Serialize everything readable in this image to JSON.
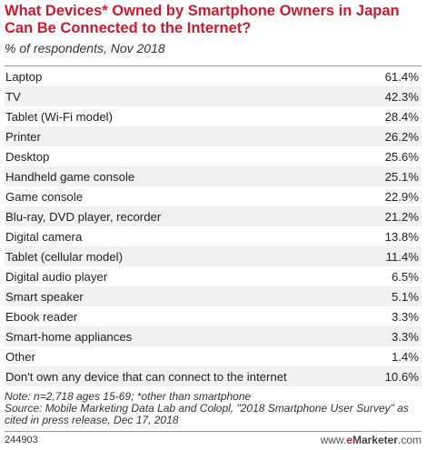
{
  "chart_data": {
    "type": "table",
    "title": "What Devices* Owned by Smartphone Owners in Japan Can Be Connected to the Internet?",
    "subtitle": "% of respondents, Nov 2018",
    "rows": [
      {
        "label": "Laptop",
        "value": 61.4,
        "display": "61.4%"
      },
      {
        "label": "TV",
        "value": 42.3,
        "display": "42.3%"
      },
      {
        "label": "Tablet (Wi-Fi model)",
        "value": 28.4,
        "display": "28.4%"
      },
      {
        "label": "Printer",
        "value": 26.2,
        "display": "26.2%"
      },
      {
        "label": "Desktop",
        "value": 25.6,
        "display": "25.6%"
      },
      {
        "label": "Handheld game console",
        "value": 25.1,
        "display": "25.1%"
      },
      {
        "label": "Game console",
        "value": 22.9,
        "display": "22.9%"
      },
      {
        "label": "Blu-ray, DVD player, recorder",
        "value": 21.2,
        "display": "21.2%"
      },
      {
        "label": "Digital camera",
        "value": 13.8,
        "display": "13.8%"
      },
      {
        "label": "Tablet (cellular model)",
        "value": 11.4,
        "display": "11.4%"
      },
      {
        "label": "Digital audio player",
        "value": 6.5,
        "display": "6.5%"
      },
      {
        "label": "Smart speaker",
        "value": 5.1,
        "display": "5.1%"
      },
      {
        "label": "Ebook reader",
        "value": 3.3,
        "display": "3.3%"
      },
      {
        "label": "Smart-home appliances",
        "value": 3.3,
        "display": "3.3%"
      },
      {
        "label": "Other",
        "value": 1.4,
        "display": "1.4%"
      },
      {
        "label": "Don't own any device that can connect to the internet",
        "value": 10.6,
        "display": "10.6%"
      }
    ]
  },
  "note": "Note: n=2,718 ages 15-69; *other than smartphone",
  "source": "Source: Mobile Marketing Data Lab and Colopl, \"2018 Smartphone User Survey\" as cited in press release, Dec 17, 2018",
  "chart_id": "244903",
  "brand": {
    "prefix": "www.",
    "e": "e",
    "name": "Marketer",
    "suffix": ".com"
  },
  "colors": {
    "title": "#d1192e",
    "row_shade": "#f1f1f1",
    "brand_accent": "#d1192e"
  }
}
